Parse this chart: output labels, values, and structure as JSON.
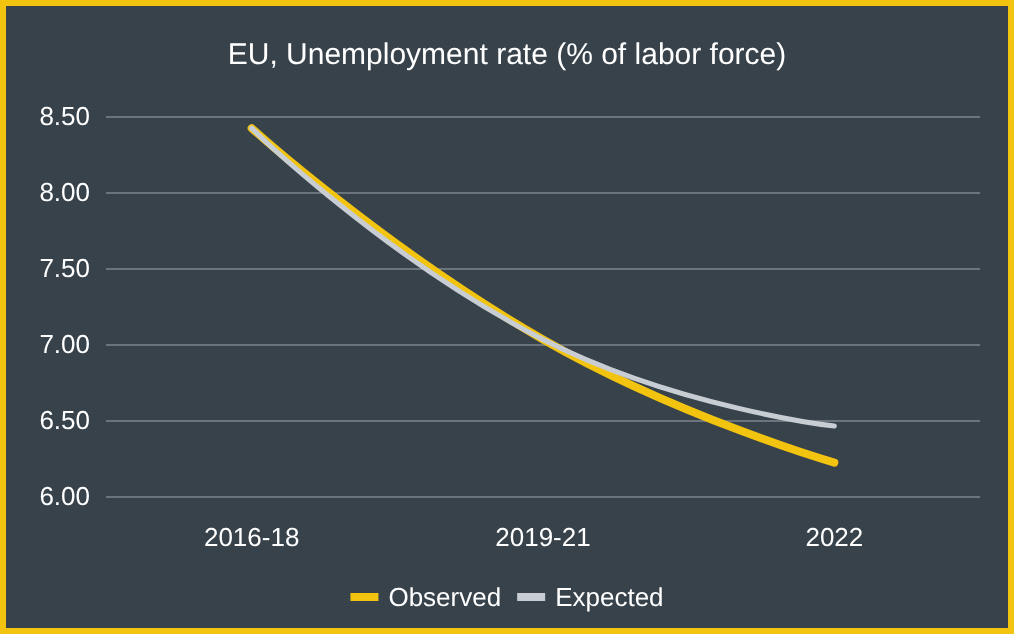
{
  "chart_data": {
    "type": "line",
    "title": "EU, Unemployment rate (% of labor force)",
    "categories": [
      "2016-18",
      "2019-21",
      "2022"
    ],
    "series": [
      {
        "name": "Observed",
        "color": "#f2c40f",
        "values": [
          8.42,
          7.03,
          6.22
        ]
      },
      {
        "name": "Expected",
        "color": "#c8cdd3",
        "values": [
          8.42,
          7.03,
          6.46
        ]
      }
    ],
    "ylim": [
      6,
      8.5
    ],
    "yticks": [
      {
        "value": 6,
        "label": "6.00"
      },
      {
        "value": 6.5,
        "label": "6.50"
      },
      {
        "value": 7,
        "label": "7.00"
      },
      {
        "value": 7.5,
        "label": "7.50"
      },
      {
        "value": 8,
        "label": "8.00"
      },
      {
        "value": 8.5,
        "label": "8.50"
      }
    ],
    "grid": "y",
    "legend": "bottom",
    "marker": "none",
    "line_style": "solid"
  }
}
